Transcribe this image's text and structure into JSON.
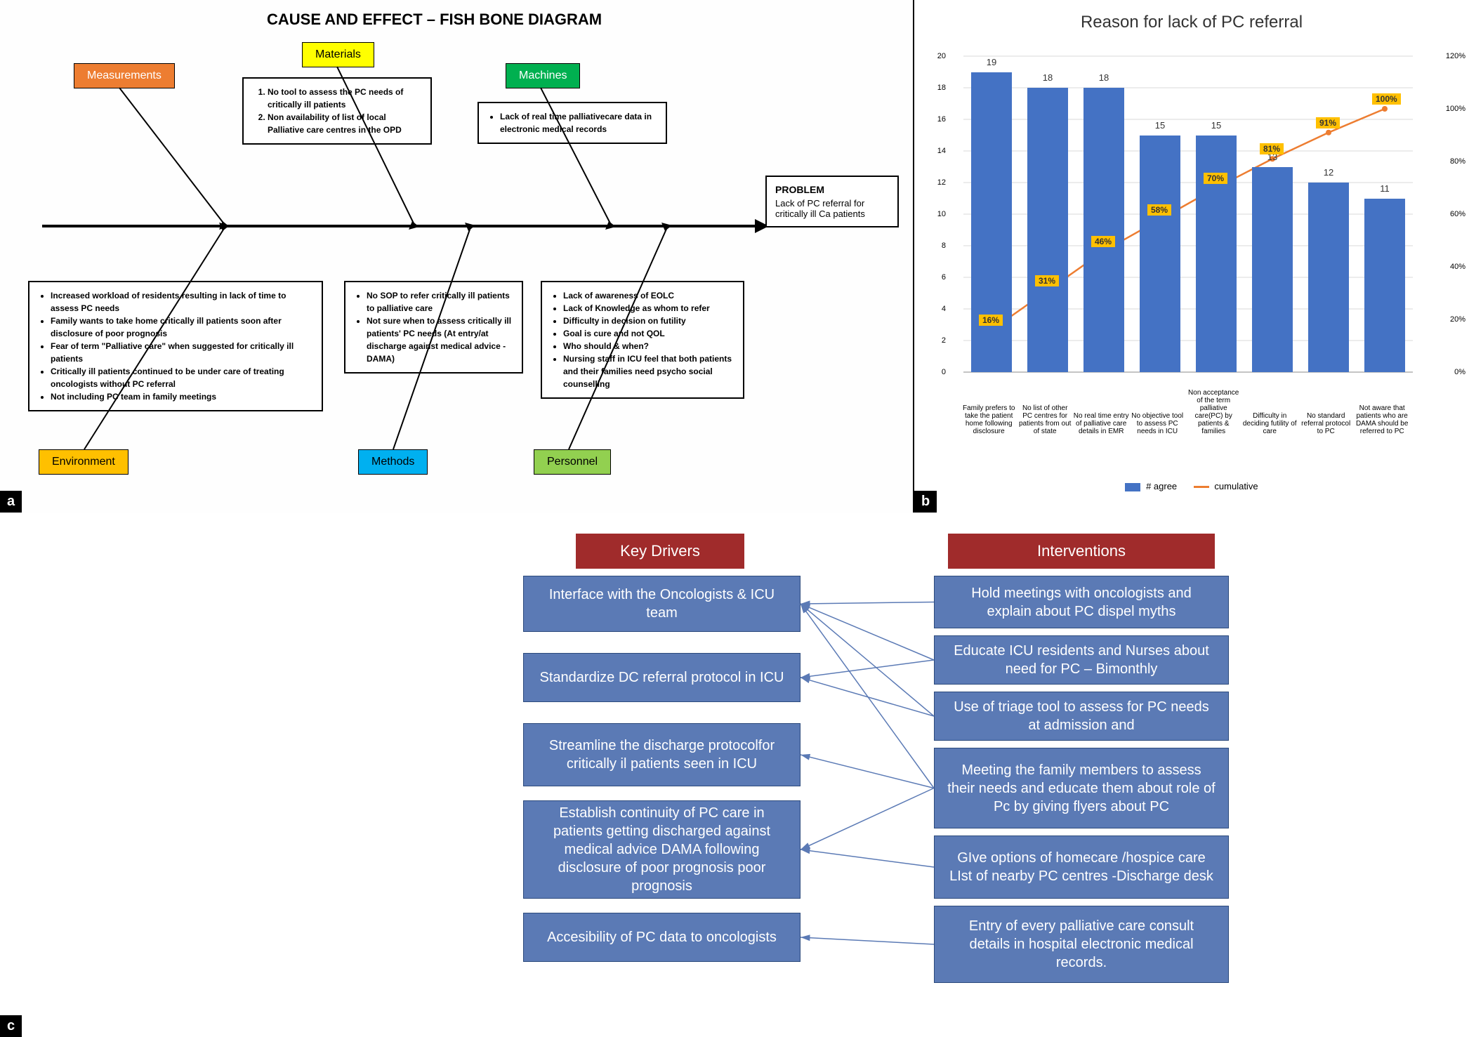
{
  "panel_a": {
    "title": "CAUSE AND EFFECT – FISH BONE DIAGRAM",
    "categories": {
      "measurements": {
        "label": "Measurements",
        "color": "#ed7d31"
      },
      "materials": {
        "label": "Materials",
        "color": "#ffff00"
      },
      "machines": {
        "label": "Machines",
        "color": "#00b050"
      },
      "environment": {
        "label": "Environment",
        "color": "#ffc000"
      },
      "methods": {
        "label": "Methods",
        "color": "#00b0f0"
      },
      "personnel": {
        "label": "Personnel",
        "color": "#92d050"
      }
    },
    "materials_items": [
      "No tool to assess the PC needs of critically ill patients",
      "Non availability of list of local Palliative care centres in the OPD"
    ],
    "machines_items": [
      "Lack of real time palliativecare data in electronic medical records"
    ],
    "environment_items": [
      "Increased workload of residents resulting in lack of time to assess PC needs",
      "Family wants to take home critically ill patients soon after disclosure of poor prognosis",
      "Fear of term \"Palliative care\" when suggested for critically ill patients",
      "Critically ill patients continued to be under care of treating oncologists without PC referral",
      "Not including PC team in family meetings"
    ],
    "methods_items": [
      "No SOP to refer critically ill patients to palliative care",
      "Not sure when to assess critically ill patients' PC needs (At entry/at discharge against medical advice - DAMA)"
    ],
    "personnel_items": [
      "Lack of awareness of EOLC",
      "Lack of Knowledge as whom to refer",
      "Difficulty in decision on futility",
      "Goal is cure and not QOL",
      "Who should & when?",
      "Nursing staff in ICU feel that both patients and their families need psycho social counselling"
    ],
    "problem_heading": "PROBLEM",
    "problem_text": "Lack of PC referral for critically ill Ca patients",
    "label": "a"
  },
  "panel_b": {
    "title": "Reason for lack of PC referral",
    "bar_color": "#4472c4",
    "line_color": "#ed7d31",
    "pct_bg": "#ffc000",
    "y_left_max": 20,
    "y_left_step": 2,
    "y_right_max": 120,
    "y_right_step": 20,
    "categories": [
      "Family prefers to take the patient home following disclosure",
      "No list of other PC centres for patients from out of state",
      "No real time entry of palliative care details in EMR",
      "No objective tool to assess PC needs in ICU",
      "Non acceptance of the term palliative care(PC) by patients & families",
      "Difficulty in deciding futility of care",
      "No standard referral protocol to PC",
      "Not aware that patients who are DAMA should be referred to PC"
    ],
    "values": [
      19,
      18,
      18,
      15,
      15,
      13,
      12,
      11
    ],
    "cumulative_pct": [
      16,
      31,
      46,
      58,
      70,
      81,
      91,
      100
    ],
    "legend_bar": "# agree",
    "legend_line": "cumulative",
    "label": "b"
  },
  "panel_c": {
    "header_color": "#a02b2b",
    "box_color": "#5b7ab5",
    "key_drivers_header": "Key Drivers",
    "interventions_header": "Interventions",
    "key_drivers": [
      "Interface with the Oncologists & ICU team",
      "Standardize DC referral protocol in ICU",
      "Streamline the discharge protocolfor critically il patients seen in ICU",
      "Establish continuity of PC care in patients getting discharged against medical advice DAMA following disclosure of poor prognosis poor prognosis",
      "Accesibility of PC data to oncologists"
    ],
    "interventions": [
      "Hold meetings with oncologists and explain about PC dispel myths",
      "Educate ICU residents and Nurses about need for PC – Bimonthly",
      "Use of triage tool to assess for PC needs at admission and",
      "Meeting the family members to assess their needs and educate them about role of Pc by giving flyers about PC",
      "GIve options of homecare /hospice care LIst of nearby PC centres -Discharge desk",
      "Entry of every palliative care consult details in hospital electronic medical records."
    ],
    "edges": [
      [
        0,
        0
      ],
      [
        1,
        0
      ],
      [
        2,
        0
      ],
      [
        3,
        0
      ],
      [
        1,
        1
      ],
      [
        2,
        1
      ],
      [
        3,
        2
      ],
      [
        3,
        3
      ],
      [
        4,
        3
      ],
      [
        5,
        4
      ]
    ],
    "label": "c"
  }
}
